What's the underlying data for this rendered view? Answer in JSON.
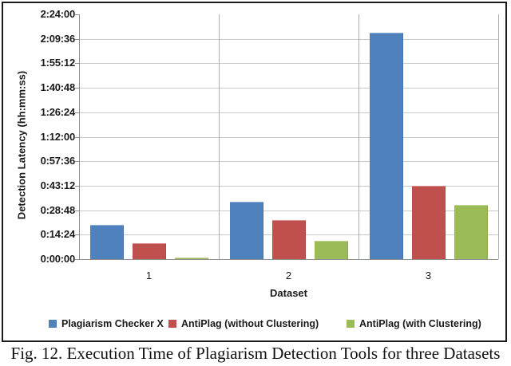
{
  "figure": {
    "caption": "Fig. 12. Execution Time of Plagiarism Detection Tools for three Datasets"
  },
  "chart_data": {
    "type": "bar",
    "title": "",
    "xlabel": "Dataset",
    "ylabel": "Detection Latency (hh:mm:ss)",
    "categories": [
      "1",
      "2",
      "3"
    ],
    "series": [
      {
        "name": "Plagiarism Checker X",
        "color": "#4F81BD",
        "values_hhmmss": [
          "0:20:00",
          "0:34:00",
          "2:13:20"
        ],
        "values_seconds": [
          1200,
          2040,
          8000
        ]
      },
      {
        "name": "AntiPlag (without Clustering)",
        "color": "#C0504D",
        "values_hhmmss": [
          "0:09:20",
          "0:22:45",
          "0:43:00"
        ],
        "values_seconds": [
          560,
          1365,
          2580
        ]
      },
      {
        "name": "AntiPlag (with Clustering)",
        "color": "#9BBB59",
        "values_hhmmss": [
          "0:01:00",
          "0:10:45",
          "0:31:40"
        ],
        "values_seconds": [
          60,
          645,
          1900
        ]
      }
    ],
    "y_ticks": [
      "0:00:00",
      "0:14:24",
      "0:28:48",
      "0:43:12",
      "0:57:36",
      "1:12:00",
      "1:26:24",
      "1:40:48",
      "1:55:12",
      "2:09:36",
      "2:24:00"
    ],
    "ylim_seconds": [
      0,
      8640
    ],
    "y_tick_interval_seconds": 864,
    "grid": true,
    "legend_position": "bottom"
  },
  "colors": {
    "gridline": "#C9C9C9",
    "axis": "#8F8F8F",
    "separator": "#AEAEAE",
    "frame": "#1A1A1A",
    "text": "#1A1A1A"
  }
}
